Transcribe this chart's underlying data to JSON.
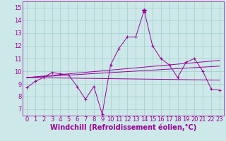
{
  "xlabel": "Windchill (Refroidissement éolien,°C)",
  "xlim": [
    -0.5,
    23.5
  ],
  "ylim": [
    6.5,
    15.5
  ],
  "xticks": [
    0,
    1,
    2,
    3,
    4,
    5,
    6,
    7,
    8,
    9,
    10,
    11,
    12,
    13,
    14,
    15,
    16,
    17,
    18,
    19,
    20,
    21,
    22,
    23
  ],
  "yticks": [
    7,
    8,
    9,
    10,
    11,
    12,
    13,
    14,
    15
  ],
  "background_color": "#cde8e8",
  "grid_color": "#9ecece",
  "line_color": "#990099",
  "main_series_y": [
    8.7,
    9.2,
    9.5,
    9.9,
    9.8,
    9.7,
    8.8,
    7.8,
    8.8,
    6.6,
    10.5,
    11.8,
    12.7,
    12.7,
    14.8,
    12.0,
    11.0,
    10.5,
    9.5,
    10.7,
    11.0,
    10.0,
    8.6,
    8.5
  ],
  "trend1_start": 9.5,
  "trend1_end": 9.3,
  "trend2_start": 9.5,
  "trend2_end": 10.4,
  "trend3_start": 9.5,
  "trend3_end": 10.85,
  "tick_font_size": 6,
  "xlabel_font_size": 7
}
